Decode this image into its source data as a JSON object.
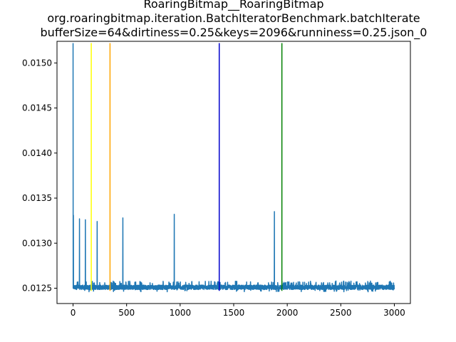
{
  "chart_data": {
    "type": "line",
    "title_lines": [
      "RoaringBitmap__RoaringBitmap",
      "org.roaringbitmap.iteration.BatchIteratorBenchmark.batchIterate",
      "bufferSize=64&dirtiness=0.25&keys=2096&runniness=0.25.json_0"
    ],
    "xlabel": "",
    "ylabel": "",
    "xlim": [
      -150,
      3150
    ],
    "ylim": [
      0.01233,
      0.01524
    ],
    "x_ticks": [
      0,
      500,
      1000,
      1500,
      2000,
      2500,
      3000
    ],
    "x_tick_labels": [
      "0",
      "500",
      "1000",
      "1500",
      "2000",
      "2500",
      "3000"
    ],
    "y_ticks": [
      0.0125,
      0.013,
      0.0135,
      0.014,
      0.0145,
      0.015
    ],
    "y_tick_labels": [
      "0.0125",
      "0.0130",
      "0.0135",
      "0.0140",
      "0.0145",
      "0.0150"
    ],
    "grid": false,
    "series": [
      {
        "color": "#1f77b4",
        "n_points": 3000,
        "baseline": 0.01251,
        "noise_band": [
          0.01246,
          0.01258
        ],
        "spikes": [
          {
            "x": 0,
            "y": 0.01522
          },
          {
            "x": 3,
            "y": 0.01331
          },
          {
            "x": 60,
            "y": 0.01327
          },
          {
            "x": 115,
            "y": 0.01326
          },
          {
            "x": 225,
            "y": 0.01324
          },
          {
            "x": 465,
            "y": 0.01328
          },
          {
            "x": 945,
            "y": 0.01332
          },
          {
            "x": 1880,
            "y": 0.01335
          }
        ]
      }
    ],
    "vertical_lines": [
      {
        "x": 170,
        "color": "#ffff00"
      },
      {
        "x": 345,
        "color": "#ffa500"
      },
      {
        "x": 1365,
        "color": "#0000cd"
      },
      {
        "x": 1950,
        "color": "#008000"
      }
    ],
    "vline_range": [
      0.01247,
      0.01522
    ]
  }
}
